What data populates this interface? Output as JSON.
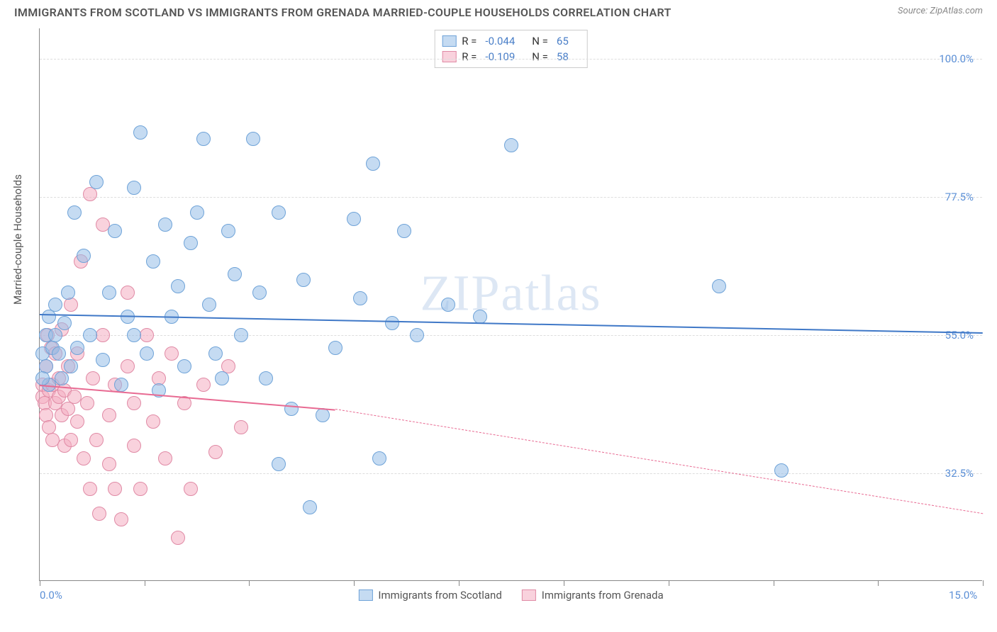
{
  "title": "IMMIGRANTS FROM SCOTLAND VS IMMIGRANTS FROM GRENADA MARRIED-COUPLE HOUSEHOLDS CORRELATION CHART",
  "source": "Source: ZipAtlas.com",
  "watermark": "ZIPatlas",
  "y_axis_label": "Married-couple Households",
  "chart": {
    "type": "scatter",
    "xlim": [
      0,
      15
    ],
    "ylim": [
      15,
      105
    ],
    "x_ticks": [
      0,
      1.67,
      3.33,
      5.0,
      6.67,
      8.33,
      10.0,
      11.67,
      13.33,
      15.0
    ],
    "x_tick_labels": {
      "0": "0.0%",
      "15": "15.0%"
    },
    "y_grid": [
      32.5,
      55.0,
      77.5,
      100.0
    ],
    "y_tick_labels": [
      "32.5%",
      "55.0%",
      "77.5%",
      "100.0%"
    ],
    "background_color": "#ffffff",
    "grid_color": "#dddddd"
  },
  "series": {
    "scotland": {
      "label": "Immigrants from Scotland",
      "fill": "rgba(149,189,232,0.55)",
      "stroke": "#6fa3d8",
      "r_label": "R =",
      "r_value": "-0.044",
      "n_label": "N =",
      "n_value": "65",
      "trend": {
        "y_at_x0": 58.5,
        "y_at_x15": 55.5,
        "color": "#3f78c7",
        "width": 2.5
      },
      "points": [
        [
          0.05,
          52
        ],
        [
          0.1,
          55
        ],
        [
          0.1,
          50
        ],
        [
          0.15,
          58
        ],
        [
          0.15,
          47
        ],
        [
          0.2,
          53
        ],
        [
          0.25,
          60
        ],
        [
          0.25,
          55
        ],
        [
          0.3,
          52
        ],
        [
          0.35,
          48
        ],
        [
          0.4,
          57
        ],
        [
          0.45,
          62
        ],
        [
          0.5,
          50
        ],
        [
          0.55,
          75
        ],
        [
          0.6,
          53
        ],
        [
          0.7,
          68
        ],
        [
          0.8,
          55
        ],
        [
          0.9,
          80
        ],
        [
          1.0,
          51
        ],
        [
          1.1,
          62
        ],
        [
          1.2,
          72
        ],
        [
          1.3,
          47
        ],
        [
          1.4,
          58
        ],
        [
          1.5,
          79
        ],
        [
          1.5,
          55
        ],
        [
          1.6,
          88
        ],
        [
          1.7,
          52
        ],
        [
          1.8,
          67
        ],
        [
          1.9,
          46
        ],
        [
          2.0,
          73
        ],
        [
          2.1,
          58
        ],
        [
          2.2,
          63
        ],
        [
          2.3,
          50
        ],
        [
          2.4,
          70
        ],
        [
          2.5,
          75
        ],
        [
          2.6,
          87
        ],
        [
          2.7,
          60
        ],
        [
          2.8,
          52
        ],
        [
          2.9,
          48
        ],
        [
          3.0,
          72
        ],
        [
          3.1,
          65
        ],
        [
          3.2,
          55
        ],
        [
          3.4,
          87
        ],
        [
          3.5,
          62
        ],
        [
          3.6,
          48
        ],
        [
          3.8,
          34
        ],
        [
          3.8,
          75
        ],
        [
          4.0,
          43
        ],
        [
          4.2,
          64
        ],
        [
          4.3,
          27
        ],
        [
          4.5,
          42
        ],
        [
          4.7,
          53
        ],
        [
          5.0,
          74
        ],
        [
          5.1,
          61
        ],
        [
          5.3,
          83
        ],
        [
          5.4,
          35
        ],
        [
          5.6,
          57
        ],
        [
          5.8,
          72
        ],
        [
          6.0,
          55
        ],
        [
          6.5,
          60
        ],
        [
          7.0,
          58
        ],
        [
          7.5,
          86
        ],
        [
          10.8,
          63
        ],
        [
          11.8,
          33
        ],
        [
          0.05,
          48
        ]
      ]
    },
    "grenada": {
      "label": "Immigrants from Grenada",
      "fill": "rgba(244,173,193,0.55)",
      "stroke": "#e08aa5",
      "r_label": "R =",
      "r_value": "-0.109",
      "n_label": "N =",
      "n_value": "58",
      "trend": {
        "y_at_x0": 47.0,
        "y_at_x_end_solid": 43.0,
        "x_end_solid": 4.7,
        "y_at_x15": 26.0,
        "color": "#e86a92",
        "width": 2.5
      },
      "points": [
        [
          0.05,
          45
        ],
        [
          0.05,
          47
        ],
        [
          0.08,
          44
        ],
        [
          0.1,
          50
        ],
        [
          0.1,
          42
        ],
        [
          0.12,
          55
        ],
        [
          0.15,
          46
        ],
        [
          0.15,
          40
        ],
        [
          0.18,
          53
        ],
        [
          0.2,
          47
        ],
        [
          0.2,
          38
        ],
        [
          0.25,
          44
        ],
        [
          0.25,
          52
        ],
        [
          0.3,
          45
        ],
        [
          0.3,
          48
        ],
        [
          0.35,
          42
        ],
        [
          0.35,
          56
        ],
        [
          0.4,
          46
        ],
        [
          0.4,
          37
        ],
        [
          0.45,
          50
        ],
        [
          0.45,
          43
        ],
        [
          0.5,
          60
        ],
        [
          0.5,
          38
        ],
        [
          0.55,
          45
        ],
        [
          0.6,
          52
        ],
        [
          0.6,
          41
        ],
        [
          0.65,
          67
        ],
        [
          0.7,
          35
        ],
        [
          0.75,
          44
        ],
        [
          0.8,
          78
        ],
        [
          0.8,
          30
        ],
        [
          0.85,
          48
        ],
        [
          0.9,
          38
        ],
        [
          0.95,
          26
        ],
        [
          1.0,
          55
        ],
        [
          1.0,
          73
        ],
        [
          1.1,
          42
        ],
        [
          1.1,
          34
        ],
        [
          1.2,
          47
        ],
        [
          1.2,
          30
        ],
        [
          1.3,
          25
        ],
        [
          1.4,
          50
        ],
        [
          1.4,
          62
        ],
        [
          1.5,
          37
        ],
        [
          1.5,
          44
        ],
        [
          1.6,
          30
        ],
        [
          1.7,
          55
        ],
        [
          1.8,
          41
        ],
        [
          1.9,
          48
        ],
        [
          2.0,
          35
        ],
        [
          2.1,
          52
        ],
        [
          2.2,
          22
        ],
        [
          2.3,
          44
        ],
        [
          2.4,
          30
        ],
        [
          2.6,
          47
        ],
        [
          2.8,
          36
        ],
        [
          3.0,
          50
        ],
        [
          3.2,
          40
        ]
      ]
    }
  }
}
